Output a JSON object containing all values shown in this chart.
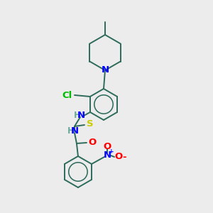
{
  "background_color": "#ececec",
  "bond_color": "#2d6b5a",
  "atom_colors": {
    "N": "#0000ff",
    "O": "#ff0000",
    "S": "#cccc00",
    "Cl": "#00bb00",
    "H_N": "#6aaa99"
  },
  "figsize": [
    3.0,
    3.0
  ],
  "dpi": 100,
  "lw": 1.4,
  "fs": 9.5
}
